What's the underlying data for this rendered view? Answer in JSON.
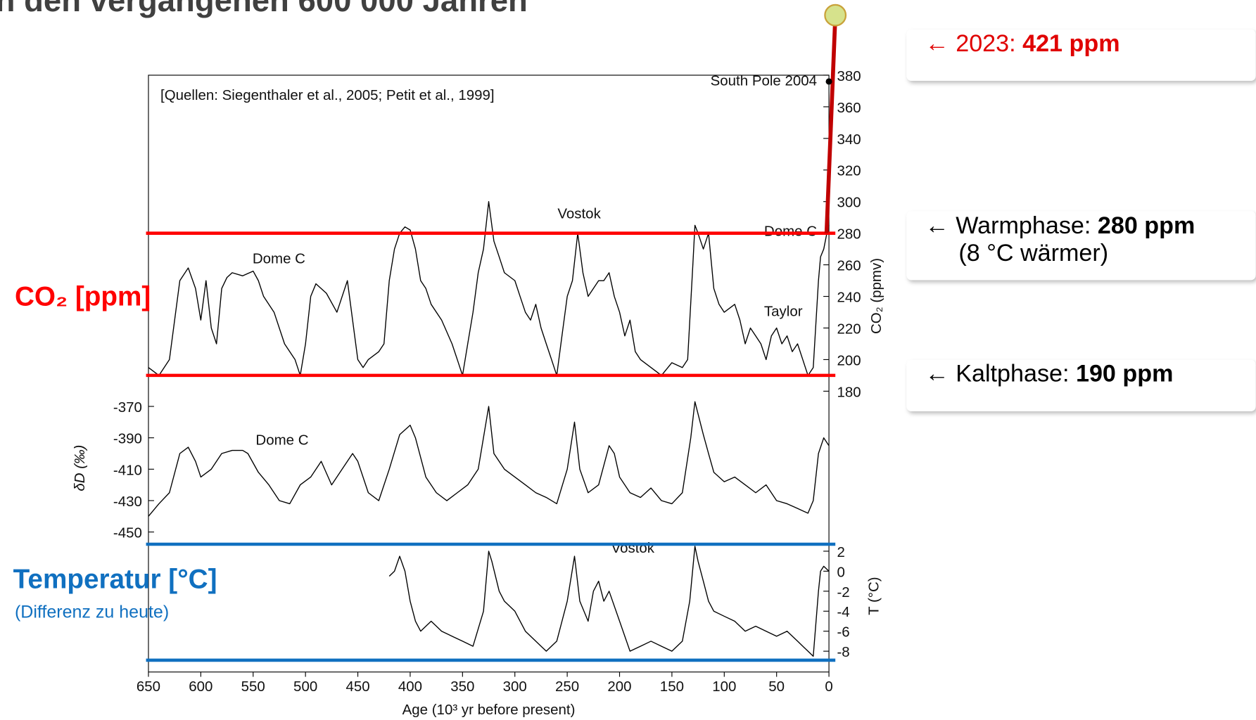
{
  "title": "n den vergangenen 600 000 Jahren",
  "callouts": [
    {
      "label": "← 2023: ",
      "value": "421 ppm"
    },
    {
      "label": "← Warmphase: ",
      "value": "280 ppm",
      "note": "(8 °C wärmer)"
    },
    {
      "label": "← Kaltphase: ",
      "value": "190 ppm"
    }
  ],
  "chart_data": [
    {
      "type": "line",
      "ylabel": "CO₂ (ppmv)",
      "y_axis_side": "right",
      "color": "#000000",
      "side_label": "CO₂ [ppm]",
      "ylim": [
        180,
        380
      ],
      "yticks": [
        180,
        200,
        220,
        240,
        260,
        280,
        300,
        320,
        340,
        360,
        380
      ],
      "annotations": [
        "[Quellen: Siegenthaler et al., 2005; Petit et al., 1999]",
        "South Pole 2004",
        "Vostok",
        "Dome C",
        "Dome C",
        "Taylor"
      ],
      "south_pole_2004": {
        "x": 0,
        "value": 376
      },
      "reference_lines": [
        280,
        190
      ],
      "reference_color": "#ff0000",
      "present": {
        "x": 0,
        "from": 280,
        "value": 421,
        "color": "#c00000"
      },
      "x": [
        650,
        640,
        630,
        620,
        612,
        605,
        600,
        595,
        590,
        585,
        580,
        575,
        570,
        560,
        550,
        545,
        540,
        530,
        520,
        510,
        505,
        500,
        495,
        490,
        480,
        470,
        460,
        450,
        445,
        440,
        430,
        425,
        420,
        415,
        410,
        405,
        400,
        395,
        390,
        385,
        380,
        370,
        360,
        355,
        350,
        345,
        340,
        335,
        330,
        325,
        320,
        315,
        310,
        300,
        295,
        290,
        285,
        280,
        275,
        270,
        265,
        260,
        255,
        250,
        245,
        240,
        235,
        230,
        225,
        220,
        215,
        210,
        205,
        200,
        195,
        190,
        185,
        180,
        170,
        160,
        150,
        140,
        135,
        130,
        128,
        125,
        120,
        115,
        110,
        105,
        100,
        90,
        85,
        80,
        75,
        70,
        65,
        60,
        55,
        50,
        45,
        40,
        35,
        30,
        25,
        20,
        15,
        10,
        8,
        5,
        2,
        0
      ],
      "values": [
        195,
        190,
        200,
        250,
        258,
        245,
        225,
        250,
        220,
        210,
        245,
        252,
        255,
        253,
        256,
        250,
        240,
        230,
        210,
        200,
        190,
        210,
        240,
        248,
        242,
        230,
        250,
        200,
        195,
        200,
        205,
        210,
        250,
        270,
        280,
        284,
        282,
        270,
        250,
        245,
        235,
        225,
        210,
        200,
        190,
        210,
        230,
        255,
        270,
        300,
        275,
        265,
        255,
        250,
        240,
        230,
        225,
        235,
        220,
        210,
        200,
        190,
        215,
        240,
        250,
        280,
        255,
        240,
        245,
        250,
        250,
        255,
        240,
        230,
        215,
        225,
        205,
        200,
        195,
        190,
        198,
        195,
        200,
        260,
        285,
        280,
        270,
        280,
        245,
        235,
        230,
        235,
        225,
        210,
        220,
        215,
        210,
        200,
        215,
        220,
        210,
        215,
        205,
        210,
        200,
        190,
        195,
        250,
        265,
        270,
        280,
        285
      ]
    },
    {
      "type": "line",
      "ylabel": "δD (‰)",
      "y_axis_side": "left",
      "color": "#000000",
      "ylim": [
        -450,
        -370
      ],
      "yticks": [
        -450,
        -430,
        -410,
        -390,
        -370
      ],
      "annotations": [
        "Dome C"
      ],
      "x": [
        650,
        640,
        630,
        620,
        612,
        605,
        600,
        590,
        580,
        570,
        560,
        555,
        545,
        535,
        525,
        515,
        505,
        495,
        485,
        475,
        465,
        455,
        450,
        440,
        430,
        420,
        410,
        400,
        395,
        385,
        375,
        365,
        355,
        345,
        335,
        325,
        320,
        310,
        300,
        290,
        280,
        270,
        260,
        250,
        243,
        238,
        230,
        220,
        210,
        205,
        200,
        190,
        180,
        170,
        160,
        150,
        140,
        132,
        128,
        120,
        115,
        110,
        100,
        90,
        80,
        70,
        60,
        50,
        40,
        30,
        20,
        15,
        10,
        5,
        0
      ],
      "values": [
        -440,
        -432,
        -425,
        -400,
        -396,
        -405,
        -415,
        -410,
        -400,
        -398,
        -398,
        -400,
        -412,
        -420,
        -430,
        -432,
        -420,
        -415,
        -405,
        -420,
        -410,
        -400,
        -405,
        -425,
        -430,
        -410,
        -388,
        -382,
        -390,
        -415,
        -425,
        -430,
        -425,
        -420,
        -410,
        -370,
        -400,
        -410,
        -415,
        -420,
        -425,
        -428,
        -432,
        -410,
        -380,
        -410,
        -425,
        -420,
        -395,
        -400,
        -415,
        -425,
        -428,
        -422,
        -430,
        -432,
        -425,
        -390,
        -367,
        -388,
        -400,
        -412,
        -418,
        -415,
        -420,
        -425,
        -420,
        -430,
        -432,
        -435,
        -438,
        -430,
        -400,
        -390,
        -395
      ]
    },
    {
      "type": "line",
      "ylabel": "T (°C)",
      "y_axis_side": "right",
      "color": "#000000",
      "side_label": "Temperatur [°C]",
      "side_sublabel": "(Differenz zu heute)",
      "ylim": [
        -8,
        2
      ],
      "yticks": [
        -8,
        -6,
        -4,
        -2,
        0,
        2
      ],
      "annotations": [
        "Vostok"
      ],
      "reference_lines": [
        2.7,
        -8.9
      ],
      "reference_color": "#1070c0",
      "xlabel": "Age (10³ yr before present)",
      "xlim": [
        650,
        0
      ],
      "xticks": [
        650,
        600,
        550,
        500,
        450,
        400,
        350,
        300,
        250,
        200,
        150,
        100,
        50,
        0
      ],
      "x": [
        420,
        415,
        410,
        405,
        400,
        395,
        390,
        380,
        370,
        360,
        350,
        340,
        330,
        325,
        322,
        315,
        310,
        300,
        290,
        280,
        270,
        260,
        250,
        243,
        238,
        230,
        225,
        220,
        215,
        210,
        200,
        190,
        180,
        170,
        160,
        150,
        140,
        133,
        128,
        125,
        120,
        115,
        110,
        100,
        90,
        80,
        70,
        60,
        50,
        40,
        30,
        20,
        15,
        10,
        8,
        5,
        0
      ],
      "values": [
        -0.5,
        0,
        1.5,
        0,
        -3,
        -5,
        -6,
        -5,
        -6,
        -6.5,
        -7,
        -7.5,
        -4,
        2,
        1,
        -2,
        -3,
        -4,
        -6,
        -7,
        -8,
        -7,
        -3,
        1.5,
        -3,
        -5,
        -2,
        -1,
        -3,
        -2,
        -5,
        -8,
        -7.5,
        -7,
        -7.5,
        -8,
        -7,
        -3,
        2.5,
        1,
        -1,
        -3,
        -4,
        -4.5,
        -5,
        -6,
        -5.5,
        -6,
        -6.5,
        -6,
        -7,
        -8,
        -8.5,
        -2,
        0,
        0.5,
        0
      ]
    }
  ]
}
